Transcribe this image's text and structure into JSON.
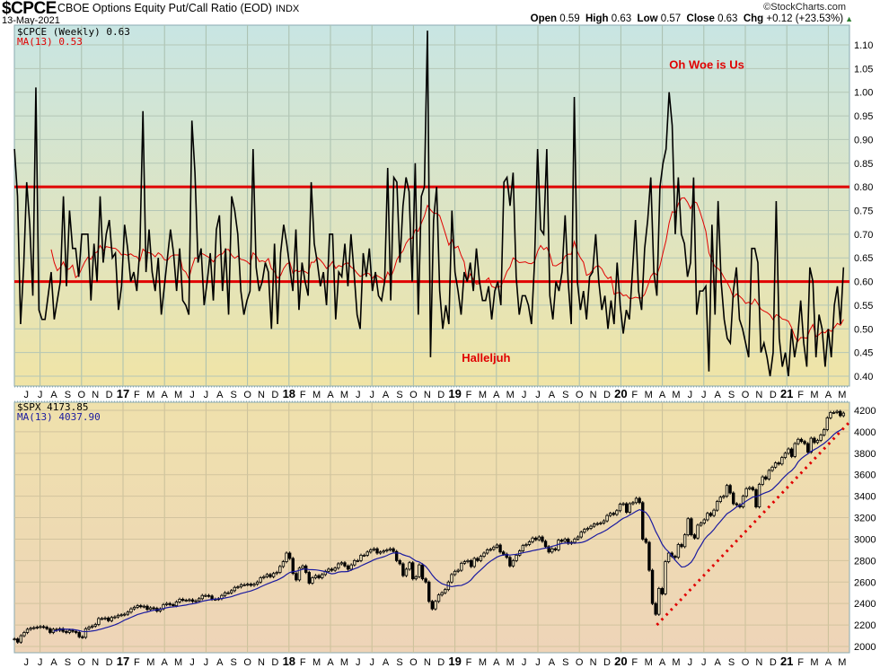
{
  "header": {
    "symbol": "$CPCE",
    "description": "CBOE Options Equity Put/Call Ratio (EOD)",
    "exchange": "INDX",
    "date": "13-May-2021",
    "brand": "©StockCharts.com",
    "open_label": "Open",
    "open": "0.59",
    "high_label": "High",
    "high": "0.63",
    "low_label": "Low",
    "low": "0.57",
    "close_label": "Close",
    "close": "0.63",
    "chg_label": "Chg",
    "chg": "+0.12 (+23.53%)",
    "chg_icon": "up-triangle-icon"
  },
  "chart_data": [
    {
      "type": "line",
      "title": "$CPCE CBOE Options Equity Put/Call Ratio (EOD)",
      "frequency": "weekly",
      "x_range": [
        "2016-05-27",
        "2021-05-13"
      ],
      "ylim": [
        0.38,
        1.14
      ],
      "yticks": [
        "0.40",
        "0.45",
        "0.50",
        "0.55",
        "0.60",
        "0.65",
        "0.70",
        "0.75",
        "0.80",
        "0.85",
        "0.90",
        "0.95",
        "1.00",
        "1.05",
        "1.10"
      ],
      "legend": [
        "$CPCE (Weekly) 0.63",
        "MA(13) 0.53"
      ],
      "legend_placement": "top-left",
      "series": [
        {
          "name": "$CPCE (Weekly)",
          "color": "#000000",
          "values": [
            0.88,
            0.78,
            0.51,
            0.63,
            0.81,
            0.72,
            0.57,
            1.01,
            0.54,
            0.52,
            0.52,
            0.57,
            0.62,
            0.52,
            0.56,
            0.6,
            0.78,
            0.59,
            0.75,
            0.67,
            0.67,
            0.61,
            0.7,
            0.7,
            0.7,
            0.56,
            0.68,
            0.6,
            0.78,
            0.64,
            0.7,
            0.73,
            0.65,
            0.66,
            0.54,
            0.59,
            0.72,
            0.67,
            0.6,
            0.62,
            0.58,
            0.67,
            0.96,
            0.62,
            0.71,
            0.62,
            0.58,
            0.65,
            0.53,
            0.59,
            0.65,
            0.71,
            0.66,
            0.58,
            0.67,
            0.56,
            0.55,
            0.53,
            0.94,
            0.83,
            0.64,
            0.67,
            0.55,
            0.6,
            0.66,
            0.56,
            0.71,
            0.74,
            0.58,
            0.67,
            0.53,
            0.78,
            0.75,
            0.7,
            0.58,
            0.53,
            0.56,
            0.58,
            0.88,
            0.63,
            0.58,
            0.6,
            0.64,
            0.62,
            0.5,
            0.68,
            0.51,
            0.66,
            0.72,
            0.68,
            0.63,
            0.58,
            0.71,
            0.54,
            0.64,
            0.6,
            0.57,
            0.81,
            0.68,
            0.64,
            0.59,
            0.62,
            0.55,
            0.7,
            0.7,
            0.52,
            0.62,
            0.61,
            0.68,
            0.59,
            0.7,
            0.62,
            0.53,
            0.5,
            0.66,
            0.61,
            0.67,
            0.58,
            0.62,
            0.57,
            0.56,
            0.6,
            0.84,
            0.56,
            0.82,
            0.81,
            0.64,
            0.76,
            0.82,
            0.79,
            0.6,
            0.85,
            0.53,
            0.78,
            0.8,
            1.13,
            0.44,
            0.73,
            0.8,
            0.58,
            0.5,
            0.55,
            0.51,
            0.75,
            0.62,
            0.58,
            0.53,
            0.62,
            0.6,
            0.64,
            0.58,
            0.67,
            0.6,
            0.56,
            0.56,
            0.59,
            0.52,
            0.58,
            0.6,
            0.55,
            0.81,
            0.82,
            0.76,
            0.83,
            0.61,
            0.53,
            0.57,
            0.57,
            0.55,
            0.51,
            0.64,
            0.88,
            0.71,
            0.7,
            0.88,
            0.57,
            0.52,
            0.6,
            0.58,
            0.62,
            0.74,
            0.6,
            0.51,
            0.99,
            0.6,
            0.54,
            0.58,
            0.52,
            0.61,
            0.62,
            0.7,
            0.6,
            0.54,
            0.57,
            0.5,
            0.56,
            0.51,
            0.64,
            0.55,
            0.49,
            0.54,
            0.52,
            0.62,
            0.73,
            0.58,
            0.54,
            0.67,
            0.73,
            0.82,
            0.62,
            0.57,
            0.8,
            0.85,
            0.88,
            1.0,
            0.93,
            0.7,
            0.82,
            0.7,
            0.68,
            0.61,
            0.64,
            0.82,
            0.53,
            0.58,
            0.58,
            0.59,
            0.41,
            0.72,
            0.53,
            0.77,
            0.6,
            0.52,
            0.48,
            0.47,
            0.58,
            0.63,
            0.52,
            0.5,
            0.47,
            0.44,
            0.67,
            0.67,
            0.64,
            0.45,
            0.47,
            0.44,
            0.4,
            0.45,
            0.77,
            0.48,
            0.42,
            0.45,
            0.4,
            0.5,
            0.44,
            0.48,
            0.56,
            0.47,
            0.42,
            0.63,
            0.6,
            0.44,
            0.53,
            0.5,
            0.42,
            0.5,
            0.44,
            0.55,
            0.59,
            0.51,
            0.63
          ]
        },
        {
          "name": "MA(13)",
          "color": "#e00000",
          "period": 13
        }
      ],
      "reference_lines": [
        {
          "value": 0.8,
          "color": "#e00000"
        },
        {
          "value": 0.6,
          "color": "#e00000"
        }
      ],
      "annotations": [
        {
          "text": "Oh Woe is Us",
          "date_month_offset": 39.5,
          "value": 1.05
        },
        {
          "text": "Halleljuh",
          "date_month_offset": 24.5,
          "value": 0.43
        }
      ]
    },
    {
      "type": "candlestick",
      "title": "$SPX",
      "frequency": "weekly",
      "x_range": [
        "2016-05-27",
        "2021-05-13"
      ],
      "ylim": [
        1940,
        4250
      ],
      "yticks": [
        "2000",
        "2200",
        "2400",
        "2600",
        "2800",
        "3000",
        "3200",
        "3400",
        "3600",
        "3800",
        "4000",
        "4200"
      ],
      "legend": [
        "$SPX 4173.85",
        "MA(13) 4037.90"
      ],
      "legend_placement": "top-left",
      "series": [
        {
          "name": "$SPX",
          "color": "#000000",
          "values": [
            2070,
            2040,
            2100,
            2130,
            2160,
            2170,
            2175,
            2180,
            2185,
            2180,
            2165,
            2130,
            2160,
            2150,
            2165,
            2140,
            2130,
            2150,
            2140,
            2130,
            2090,
            2085,
            2165,
            2180,
            2190,
            2205,
            2260,
            2260,
            2265,
            2240,
            2270,
            2275,
            2290,
            2295,
            2300,
            2320,
            2350,
            2365,
            2380,
            2370,
            2375,
            2345,
            2360,
            2355,
            2330,
            2350,
            2390,
            2400,
            2390,
            2380,
            2415,
            2440,
            2430,
            2430,
            2435,
            2420,
            2425,
            2445,
            2475,
            2475,
            2470,
            2440,
            2440,
            2445,
            2475,
            2500,
            2500,
            2520,
            2550,
            2555,
            2575,
            2575,
            2580,
            2570,
            2580,
            2600,
            2640,
            2650,
            2670,
            2650,
            2680,
            2690,
            2745,
            2790,
            2870,
            2820,
            2680,
            2620,
            2730,
            2750,
            2690,
            2590,
            2640,
            2660,
            2640,
            2670,
            2700,
            2720,
            2710,
            2730,
            2770,
            2780,
            2750,
            2720,
            2760,
            2800,
            2800,
            2850,
            2850,
            2880,
            2900,
            2910,
            2870,
            2880,
            2890,
            2900,
            2910,
            2885,
            2800,
            2770,
            2660,
            2720,
            2780,
            2630,
            2650,
            2760,
            2630,
            2600,
            2420,
            2350,
            2420,
            2480,
            2500,
            2530,
            2600,
            2670,
            2700,
            2710,
            2775,
            2790,
            2800,
            2745,
            2820,
            2800,
            2840,
            2870,
            2900,
            2905,
            2925,
            2945,
            2880,
            2860,
            2830,
            2750,
            2800,
            2850,
            2890,
            2940,
            2950,
            2975,
            3010,
            2995,
            3020,
            2980,
            2930,
            2880,
            2910,
            2900,
            2990,
            2980,
            3000,
            2960,
            2970,
            3000,
            3020,
            3065,
            3090,
            3100,
            3120,
            3140,
            3145,
            3150,
            3170,
            3220,
            3240,
            3230,
            3265,
            3325,
            3330,
            3250,
            3330,
            3340,
            3380,
            3340,
            3000,
            2970,
            2710,
            2400,
            2300,
            2540,
            2490,
            2790,
            2870,
            2840,
            2830,
            2950,
            2930,
            3040,
            3190,
            3040,
            3010,
            3130,
            3150,
            3180,
            3240,
            3220,
            3270,
            3350,
            3390,
            3400,
            3500,
            3430,
            3330,
            3320,
            3300,
            3400,
            3470,
            3480,
            3460,
            3300,
            3510,
            3580,
            3560,
            3640,
            3670,
            3710,
            3700,
            3760,
            3800,
            3840,
            3770,
            3890,
            3930,
            3910,
            3890,
            3810,
            3940,
            3900,
            3920,
            3970,
            4020,
            4130,
            4180,
            4180,
            4190,
            4150,
            4174
          ]
        },
        {
          "name": "MA(13)",
          "color": "#1a1aa0",
          "period": 13
        }
      ],
      "trendline": {
        "color": "#e00000",
        "style": "dotted",
        "from": {
          "month_offset": 38.6,
          "value": 2200
        },
        "to": {
          "month_offset": 52.6,
          "value": 4100
        }
      }
    }
  ],
  "x_axis": {
    "labels": [
      "J",
      "J",
      "A",
      "S",
      "O",
      "N",
      "D",
      "17",
      "F",
      "M",
      "A",
      "M",
      "J",
      "J",
      "A",
      "S",
      "O",
      "N",
      "D",
      "18",
      "F",
      "M",
      "A",
      "M",
      "J",
      "J",
      "A",
      "S",
      "O",
      "N",
      "D",
      "19",
      "F",
      "M",
      "A",
      "M",
      "J",
      "J",
      "A",
      "S",
      "O",
      "N",
      "D",
      "20",
      "F",
      "M",
      "A",
      "M",
      "J",
      "J",
      "A",
      "S",
      "O",
      "N",
      "D",
      "21",
      "F",
      "M",
      "A",
      "M"
    ]
  }
}
